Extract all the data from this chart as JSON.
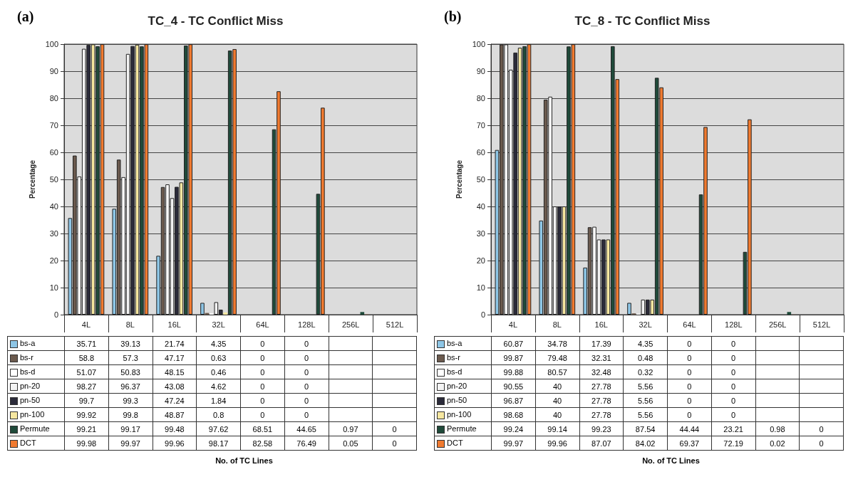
{
  "chart_data": [
    {
      "type": "bar",
      "legend": "bottom left",
      "title": "TC_4 - TC Conflict Miss",
      "annotations": [
        "(a)"
      ],
      "xlabel": "No. of TC Lines",
      "ylabel": "Percentage",
      "categories": [
        "4L",
        "8L",
        "16L",
        "32L",
        "64L",
        "128L",
        "256L",
        "512L"
      ],
      "ylim": [
        0,
        100
      ],
      "yticks": [
        0,
        10,
        20,
        30,
        40,
        50,
        60,
        70,
        80,
        90,
        100
      ],
      "grid": "y",
      "data_labels": true,
      "series": [
        {
          "name": "bs-a",
          "color": "#8ec6e6",
          "values": [
            35.71,
            39.13,
            21.74,
            4.35,
            0,
            0,
            null,
            null
          ]
        },
        {
          "name": "bs-r",
          "color": "#6b5a4e",
          "values": [
            58.8,
            57.3,
            47.17,
            0.63,
            0,
            0,
            null,
            null
          ]
        },
        {
          "name": "bs-d",
          "color": "#ffffff",
          "values": [
            51.07,
            50.83,
            48.15,
            0.46,
            0,
            0,
            null,
            null
          ]
        },
        {
          "name": "pn-20",
          "color": "#f4f4f4",
          "values": [
            98.27,
            96.37,
            43.08,
            4.62,
            0,
            0,
            null,
            null
          ]
        },
        {
          "name": "pn-50",
          "color": "#2b2b3a",
          "values": [
            99.7,
            99.3,
            47.24,
            1.84,
            0,
            0,
            null,
            null
          ]
        },
        {
          "name": "pn-100",
          "color": "#f6e7a0",
          "values": [
            99.92,
            99.8,
            48.87,
            0.8,
            0,
            0,
            null,
            null
          ]
        },
        {
          "name": "Permute",
          "color": "#1f4a3a",
          "values": [
            99.21,
            99.17,
            99.48,
            97.62,
            68.51,
            44.65,
            0.97,
            0
          ]
        },
        {
          "name": "DCT",
          "color": "#f07a30",
          "values": [
            99.98,
            99.97,
            99.96,
            98.17,
            82.58,
            76.49,
            0.05,
            0
          ]
        }
      ]
    },
    {
      "type": "bar",
      "legend": "bottom left",
      "title": "TC_8 - TC Conflict Miss",
      "annotations": [
        "(b)"
      ],
      "xlabel": "No. of TC Lines",
      "ylabel": "Percentage",
      "categories": [
        "4L",
        "8L",
        "16L",
        "32L",
        "64L",
        "128L",
        "256L",
        "512L"
      ],
      "ylim": [
        0,
        100
      ],
      "yticks": [
        0,
        10,
        20,
        30,
        40,
        50,
        60,
        70,
        80,
        90,
        100
      ],
      "grid": "y",
      "data_labels": true,
      "series": [
        {
          "name": "bs-a",
          "color": "#8ec6e6",
          "values": [
            60.87,
            34.78,
            17.39,
            4.35,
            0,
            0,
            null,
            null
          ]
        },
        {
          "name": "bs-r",
          "color": "#6b5a4e",
          "values": [
            99.87,
            79.48,
            32.31,
            0.48,
            0,
            0,
            null,
            null
          ]
        },
        {
          "name": "bs-d",
          "color": "#ffffff",
          "values": [
            99.88,
            80.57,
            32.48,
            0.32,
            0,
            0,
            null,
            null
          ]
        },
        {
          "name": "pn-20",
          "color": "#f4f4f4",
          "values": [
            90.55,
            40,
            27.78,
            5.56,
            0,
            0,
            null,
            null
          ]
        },
        {
          "name": "pn-50",
          "color": "#2b2b3a",
          "values": [
            96.87,
            40,
            27.78,
            5.56,
            0,
            0,
            null,
            null
          ]
        },
        {
          "name": "pn-100",
          "color": "#f6e7a0",
          "values": [
            98.68,
            40,
            27.78,
            5.56,
            0,
            0,
            null,
            null
          ]
        },
        {
          "name": "Permute",
          "color": "#1f4a3a",
          "values": [
            99.24,
            99.14,
            99.23,
            87.54,
            44.44,
            23.21,
            0.98,
            0
          ]
        },
        {
          "name": "DCT",
          "color": "#f07a30",
          "values": [
            99.97,
            99.96,
            87.07,
            84.02,
            69.37,
            72.19,
            0.02,
            0
          ]
        }
      ]
    }
  ]
}
